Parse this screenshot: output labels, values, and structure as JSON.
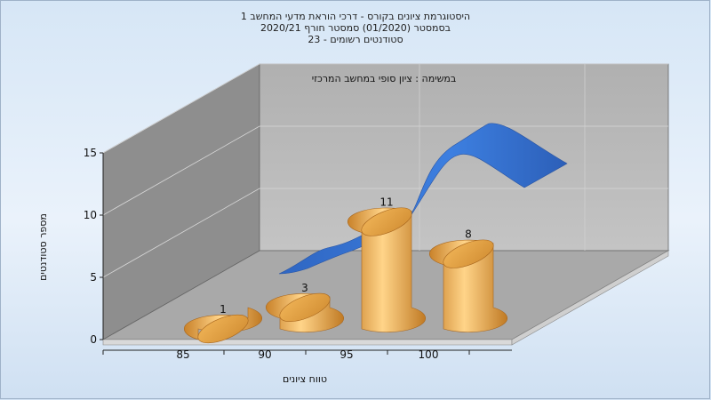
{
  "title_lines": [
    "היסטוגרמת ציונים בקורס - דרכי הוראת מדעי המחשב 1",
    "בסמסטר  (01/2020)  סמסטר חורף  2020/21",
    "סטודנטים רשומים - 23"
  ],
  "chart_data": {
    "type": "bar",
    "title": "היסטוגרמת ציונים בקורס - דרכי הוראת מדעי המחשב 1",
    "categories": [
      "85",
      "90",
      "95",
      "100"
    ],
    "series": [
      {
        "name": "במשימה : ציון סופי במחשב המרכזי",
        "values": [
          1,
          3,
          11,
          8
        ]
      }
    ],
    "xlabel": "טווח ציונים",
    "ylabel": "מספר סטודנטים",
    "ylim": [
      0,
      15
    ],
    "yticks": [
      "0",
      "5",
      "10",
      "15"
    ],
    "legend": "במשימה : ציון סופי במחשב המרכזי",
    "colors": {
      "bar": "#e8a94a",
      "ribbon": "#3b74cf"
    }
  }
}
